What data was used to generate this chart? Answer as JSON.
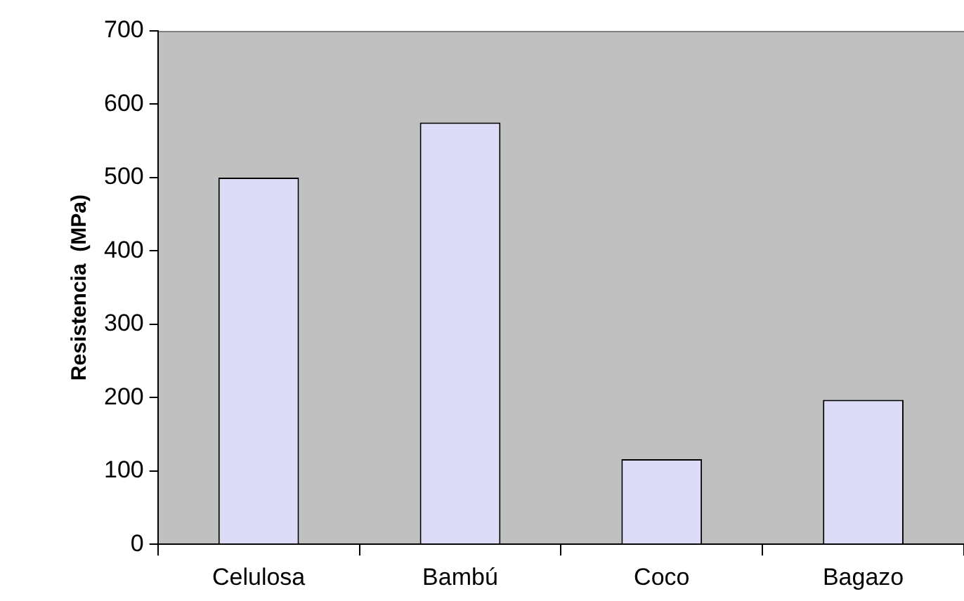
{
  "chart_data": {
    "type": "bar",
    "ylabel": "Resistencia  (MPa)",
    "categories": [
      "Celulosa",
      "Bambú",
      "Coco",
      "Bagazo"
    ],
    "values": [
      500,
      575,
      116,
      197
    ],
    "color": "#dcdcf8",
    "ylim": [
      0,
      700
    ],
    "yticks": [
      0,
      100,
      200,
      300,
      400,
      500,
      600,
      700
    ],
    "grid": false,
    "legend": false
  }
}
